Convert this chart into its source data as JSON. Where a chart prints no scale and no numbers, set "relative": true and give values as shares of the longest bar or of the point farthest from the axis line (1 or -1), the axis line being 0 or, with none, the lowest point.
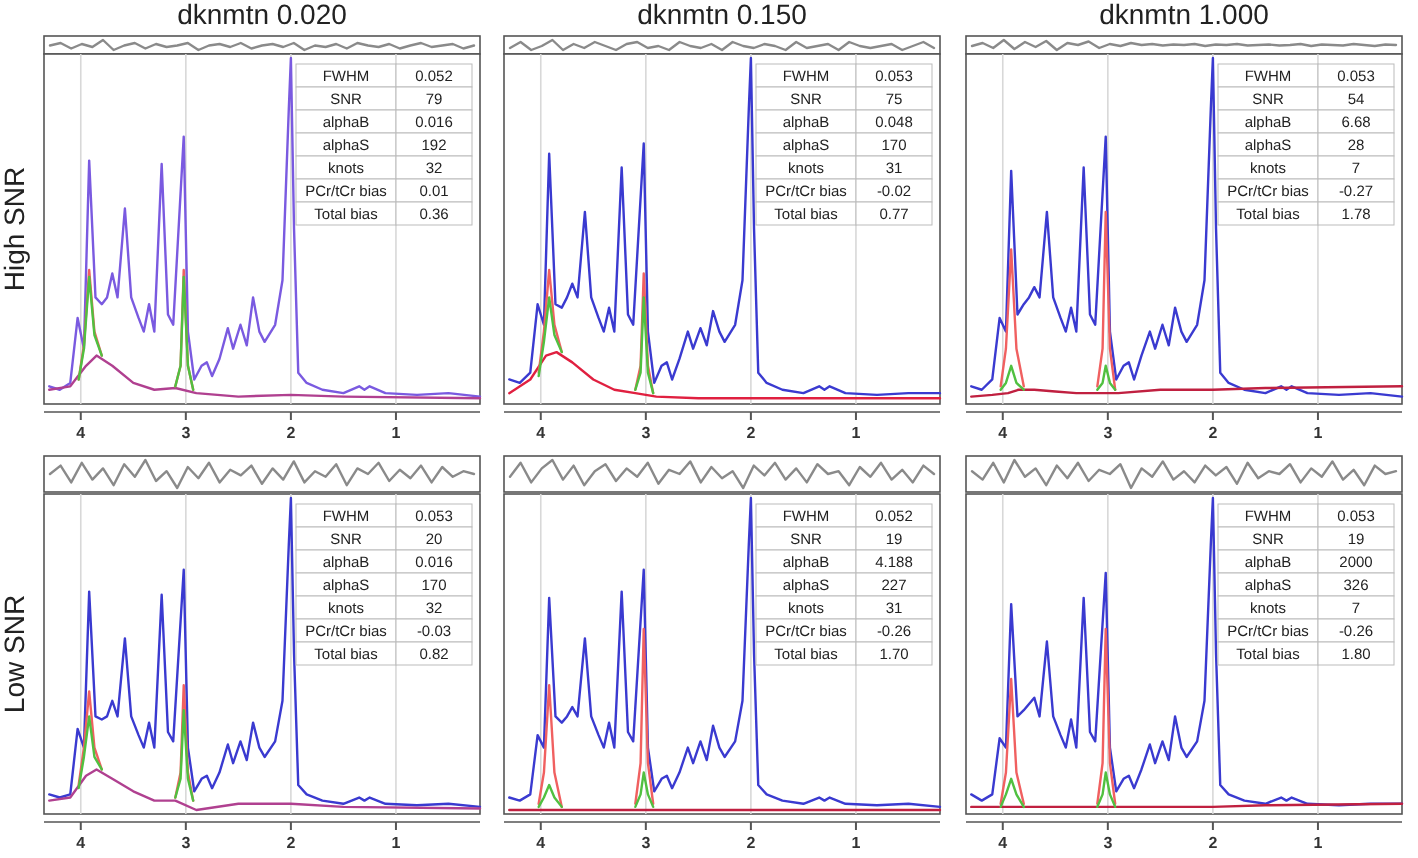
{
  "chart_data": [
    {
      "type": "line",
      "title": "dknmtn 0.020",
      "relative": true,
      "categories": [
        null,
        null,
        null,
        null,
        null,
        null,
        null,
        null,
        null,
        null,
        null,
        null,
        null,
        null,
        null,
        null,
        null,
        null,
        null,
        null,
        null,
        null,
        null,
        null,
        null,
        null,
        null,
        null,
        null,
        null,
        null,
        null,
        null,
        null,
        null,
        null,
        null,
        null,
        null,
        null,
        null
      ],
      "series": [
        {
          "color": "#8a8a8a",
          "values": [
            0.45,
            0.7,
            0.15,
            0.6,
            0.3,
            1.0,
            0.0,
            0.45,
            0.7,
            0.15,
            0.6,
            0.3,
            0.45,
            0.7,
            0.0,
            0.45,
            0.6,
            0.3,
            0.7,
            0.15,
            0.45,
            0.6,
            0.3,
            0.7,
            0.0,
            0.45,
            0.3,
            0.6,
            0.15,
            0.7,
            0.45,
            0.3,
            0.6,
            0.15,
            0.45,
            0.7,
            0.3,
            0.45,
            0.6,
            0.15,
            0.45
          ]
        }
      ]
    },
    {
      "type": "line",
      "title": "dknmtn 0.150",
      "relative": true,
      "categories": [
        null,
        null,
        null,
        null,
        null,
        null,
        null,
        null,
        null,
        null,
        null,
        null,
        null,
        null,
        null,
        null,
        null,
        null,
        null,
        null,
        null,
        null,
        null,
        null,
        null,
        null,
        null,
        null,
        null,
        null,
        null,
        null,
        null,
        null,
        null,
        null,
        null,
        null,
        null,
        null,
        null
      ],
      "series": [
        {
          "color": "#8a8a8a",
          "values": [
            0.2,
            0.8,
            0.0,
            0.4,
            1.0,
            0.0,
            0.6,
            0.2,
            0.8,
            0.4,
            0.0,
            0.6,
            0.8,
            0.2,
            0.4,
            0.0,
            0.8,
            0.4,
            0.2,
            0.6,
            0.0,
            0.8,
            0.4,
            0.2,
            0.6,
            0.4,
            0.0,
            0.8,
            0.2,
            0.4,
            0.6,
            0.0,
            0.8,
            0.4,
            0.2,
            0.4,
            0.6,
            0.0,
            0.4,
            0.8,
            0.2
          ]
        }
      ]
    },
    {
      "type": "line",
      "title": "dknmtn 1.000",
      "relative": true,
      "categories": [
        null,
        null,
        null,
        null,
        null,
        null,
        null,
        null,
        null,
        null,
        null,
        null,
        null,
        null,
        null,
        null,
        null,
        null,
        null,
        null,
        null,
        null,
        null,
        null,
        null,
        null,
        null,
        null,
        null,
        null,
        null,
        null,
        null,
        null,
        null,
        null,
        null,
        null,
        null,
        null,
        null
      ],
      "series": [
        {
          "color": "#8a8a8a",
          "values": [
            0.4,
            0.7,
            0.2,
            1.0,
            0.1,
            0.8,
            0.3,
            0.9,
            0.0,
            0.7,
            0.5,
            0.85,
            0.2,
            0.6,
            0.4,
            0.7,
            0.5,
            0.6,
            0.45,
            0.55,
            0.5,
            0.6,
            0.4,
            0.55,
            0.5,
            0.6,
            0.45,
            0.5,
            0.55,
            0.45,
            0.5,
            0.6,
            0.4,
            0.55,
            0.5,
            0.45,
            0.6,
            0.5,
            0.4,
            0.55,
            0.5
          ]
        }
      ]
    },
    {
      "type": "line",
      "ylabel": "High SNR",
      "relative": true,
      "grid": "x",
      "xlim": [
        4.35,
        0.2
      ],
      "xticks": [
        4,
        3,
        2,
        1
      ],
      "annotations": [
        "FWHM",
        "0.052",
        "SNR",
        "79",
        "alphaB",
        "0.016",
        "alphaS",
        "192",
        "knots",
        "32",
        "PCr/tCr bias",
        "0.01",
        "Total bias",
        "0.36"
      ],
      "x": [
        4.3,
        4.2,
        4.1,
        4.03,
        3.97,
        3.92,
        3.86,
        3.8,
        3.75,
        3.7,
        3.65,
        3.58,
        3.52,
        3.45,
        3.4,
        3.35,
        3.3,
        3.23,
        3.17,
        3.12,
        3.02,
        2.98,
        2.92,
        2.85,
        2.8,
        2.75,
        2.68,
        2.6,
        2.55,
        2.48,
        2.42,
        2.36,
        2.3,
        2.25,
        2.15,
        2.08,
        2.02,
        2.0,
        1.97,
        1.93,
        1.85,
        1.7,
        1.5,
        1.35,
        1.3,
        1.25,
        1.1,
        0.8,
        0.5,
        0.2
      ],
      "series": [
        {
          "color": "#7a5ae0",
          "values": [
            0.04,
            0.03,
            0.05,
            0.24,
            0.15,
            0.7,
            0.3,
            0.28,
            0.3,
            0.37,
            0.3,
            0.56,
            0.3,
            0.24,
            0.2,
            0.28,
            0.2,
            0.69,
            0.25,
            0.22,
            0.77,
            0.2,
            0.06,
            0.1,
            0.11,
            0.07,
            0.12,
            0.21,
            0.15,
            0.22,
            0.16,
            0.3,
            0.2,
            0.17,
            0.22,
            0.35,
            0.85,
            1.0,
            0.5,
            0.08,
            0.05,
            0.03,
            0.02,
            0.04,
            0.03,
            0.04,
            0.02,
            0.015,
            0.02,
            0.01
          ]
        },
        {
          "color": "#b04090",
          "x": [
            4.3,
            4.1,
            3.95,
            3.85,
            3.7,
            3.5,
            3.3,
            3.1,
            2.9,
            2.5,
            2.0,
            1.5,
            0.2
          ],
          "values": [
            0.03,
            0.04,
            0.1,
            0.13,
            0.1,
            0.05,
            0.03,
            0.035,
            0.02,
            0.01,
            0.015,
            0.01,
            0.005
          ]
        },
        {
          "color": "#f06060",
          "x": [
            4.02,
            3.97,
            3.92,
            3.87,
            3.8,
            3.5,
            3.1,
            3.05,
            3.02,
            2.98,
            2.93
          ],
          "values": [
            0.06,
            0.16,
            0.38,
            0.2,
            0.13,
            null,
            0.04,
            0.1,
            0.38,
            0.1,
            0.03
          ]
        },
        {
          "color": "#50c040",
          "x": [
            4.02,
            3.97,
            3.92,
            3.87,
            3.8,
            3.5,
            3.1,
            3.05,
            3.02,
            2.98,
            2.93
          ],
          "values": [
            0.06,
            0.15,
            0.36,
            0.19,
            0.13,
            null,
            0.04,
            0.1,
            0.36,
            0.1,
            0.03
          ]
        }
      ]
    },
    {
      "type": "line",
      "relative": true,
      "grid": "x",
      "xlim": [
        4.35,
        0.2
      ],
      "xticks": [
        4,
        3,
        2,
        1
      ],
      "annotations": [
        "FWHM",
        "0.053",
        "SNR",
        "75",
        "alphaB",
        "0.048",
        "alphaS",
        "170",
        "knots",
        "31",
        "PCr/tCr bias",
        "-0.02",
        "Total bias",
        "0.77"
      ],
      "x": [
        4.3,
        4.2,
        4.1,
        4.03,
        3.97,
        3.92,
        3.86,
        3.8,
        3.75,
        3.7,
        3.65,
        3.58,
        3.52,
        3.45,
        3.4,
        3.35,
        3.3,
        3.23,
        3.17,
        3.12,
        3.02,
        2.98,
        2.92,
        2.85,
        2.8,
        2.75,
        2.68,
        2.6,
        2.55,
        2.48,
        2.42,
        2.36,
        2.3,
        2.25,
        2.15,
        2.08,
        2.02,
        2.0,
        1.97,
        1.93,
        1.85,
        1.7,
        1.5,
        1.35,
        1.3,
        1.25,
        1.1,
        0.8,
        0.5,
        0.2
      ],
      "series": [
        {
          "color": "#3a3ad0",
          "values": [
            0.06,
            0.05,
            0.08,
            0.28,
            0.22,
            0.72,
            0.28,
            0.27,
            0.3,
            0.34,
            0.3,
            0.55,
            0.3,
            0.24,
            0.2,
            0.27,
            0.2,
            0.68,
            0.25,
            0.22,
            0.75,
            0.2,
            0.05,
            0.1,
            0.11,
            0.06,
            0.12,
            0.2,
            0.15,
            0.21,
            0.16,
            0.26,
            0.2,
            0.17,
            0.22,
            0.35,
            0.85,
            1.0,
            0.5,
            0.08,
            0.05,
            0.03,
            0.02,
            0.04,
            0.03,
            0.04,
            0.02,
            0.015,
            0.02,
            0.02
          ]
        },
        {
          "color": "#e02040",
          "x": [
            4.3,
            4.1,
            3.95,
            3.85,
            3.7,
            3.5,
            3.3,
            3.1,
            2.9,
            2.5,
            2.0,
            1.5,
            0.2
          ],
          "values": [
            0.02,
            0.06,
            0.13,
            0.14,
            0.11,
            0.06,
            0.03,
            0.02,
            0.01,
            0.005,
            0.005,
            0.005,
            0.005
          ]
        },
        {
          "color": "#f06060",
          "x": [
            4.02,
            3.97,
            3.92,
            3.87,
            3.8,
            3.5,
            3.1,
            3.05,
            3.02,
            2.98,
            2.93
          ],
          "values": [
            0.08,
            0.2,
            0.38,
            0.22,
            0.14,
            null,
            0.03,
            0.1,
            0.37,
            0.1,
            0.02
          ]
        },
        {
          "color": "#50c040",
          "x": [
            4.02,
            3.97,
            3.92,
            3.87,
            3.8,
            3.5,
            3.1,
            3.05,
            3.02,
            2.98,
            2.93
          ],
          "values": [
            0.07,
            0.17,
            0.3,
            0.19,
            0.14,
            null,
            0.03,
            0.08,
            0.3,
            0.08,
            0.02
          ]
        }
      ]
    },
    {
      "type": "line",
      "relative": true,
      "grid": "x",
      "xlim": [
        4.35,
        0.2
      ],
      "xticks": [
        4,
        3,
        2,
        1
      ],
      "annotations": [
        "FWHM",
        "0.053",
        "SNR",
        "54",
        "alphaB",
        "6.68",
        "alphaS",
        "28",
        "knots",
        "7",
        "PCr/tCr bias",
        "-0.27",
        "Total bias",
        "1.78"
      ],
      "x": [
        4.3,
        4.2,
        4.1,
        4.03,
        3.97,
        3.92,
        3.86,
        3.8,
        3.75,
        3.7,
        3.65,
        3.58,
        3.52,
        3.45,
        3.4,
        3.35,
        3.3,
        3.23,
        3.17,
        3.12,
        3.02,
        2.98,
        2.92,
        2.85,
        2.8,
        2.75,
        2.68,
        2.6,
        2.55,
        2.48,
        2.42,
        2.36,
        2.3,
        2.25,
        2.15,
        2.08,
        2.02,
        2.0,
        1.97,
        1.93,
        1.85,
        1.7,
        1.5,
        1.35,
        1.3,
        1.25,
        1.1,
        0.8,
        0.5,
        0.2
      ],
      "series": [
        {
          "color": "#3a3ad0",
          "values": [
            0.04,
            0.03,
            0.06,
            0.24,
            0.2,
            0.67,
            0.25,
            0.28,
            0.3,
            0.33,
            0.3,
            0.55,
            0.3,
            0.24,
            0.2,
            0.27,
            0.2,
            0.68,
            0.25,
            0.22,
            0.77,
            0.2,
            0.06,
            0.1,
            0.11,
            0.06,
            0.13,
            0.2,
            0.15,
            0.22,
            0.16,
            0.27,
            0.2,
            0.17,
            0.22,
            0.35,
            0.85,
            1.0,
            0.5,
            0.08,
            0.05,
            0.03,
            0.02,
            0.04,
            0.03,
            0.04,
            0.02,
            0.015,
            0.02,
            0.01
          ]
        },
        {
          "color": "#c02040",
          "x": [
            4.3,
            4.1,
            3.95,
            3.85,
            3.7,
            3.5,
            3.3,
            3.1,
            2.9,
            2.5,
            2.0,
            1.5,
            0.2
          ],
          "values": [
            0.01,
            0.015,
            0.02,
            0.03,
            0.03,
            0.025,
            0.02,
            0.02,
            0.02,
            0.03,
            0.03,
            0.035,
            0.04
          ]
        },
        {
          "color": "#f06060",
          "x": [
            4.02,
            3.97,
            3.92,
            3.87,
            3.8,
            3.5,
            3.1,
            3.05,
            3.02,
            2.98,
            2.93
          ],
          "values": [
            0.04,
            0.15,
            0.44,
            0.15,
            0.04,
            null,
            0.04,
            0.15,
            0.55,
            0.15,
            0.03
          ]
        },
        {
          "color": "#50c040",
          "x": [
            4.02,
            3.97,
            3.92,
            3.87,
            3.8,
            3.5,
            3.1,
            3.05,
            3.02,
            2.98,
            2.93
          ],
          "values": [
            0.03,
            0.05,
            0.1,
            0.05,
            0.03,
            null,
            0.03,
            0.05,
            0.1,
            0.05,
            0.03
          ]
        }
      ]
    },
    {
      "type": "line",
      "relative": true,
      "categories": [
        null,
        null,
        null,
        null,
        null,
        null,
        null,
        null,
        null,
        null,
        null,
        null,
        null,
        null,
        null,
        null,
        null,
        null,
        null,
        null,
        null,
        null,
        null,
        null,
        null,
        null,
        null,
        null,
        null,
        null,
        null,
        null,
        null,
        null,
        null,
        null,
        null,
        null,
        null,
        null,
        null
      ],
      "series": [
        {
          "color": "#8a8a8a",
          "values": [
            0.5,
            0.8,
            0.2,
            0.9,
            0.3,
            0.7,
            0.1,
            0.85,
            0.4,
            1.0,
            0.25,
            0.6,
            0.0,
            0.75,
            0.35,
            0.9,
            0.2,
            0.65,
            0.45,
            0.8,
            0.15,
            0.7,
            0.3,
            0.95,
            0.2,
            0.6,
            0.4,
            0.85,
            0.1,
            0.7,
            0.5,
            0.9,
            0.25,
            0.65,
            0.35,
            0.8,
            0.2,
            0.75,
            0.4,
            0.6,
            0.5
          ]
        }
      ]
    },
    {
      "type": "line",
      "relative": true,
      "categories": [
        null,
        null,
        null,
        null,
        null,
        null,
        null,
        null,
        null,
        null,
        null,
        null,
        null,
        null,
        null,
        null,
        null,
        null,
        null,
        null,
        null,
        null,
        null,
        null,
        null,
        null,
        null,
        null,
        null,
        null,
        null,
        null,
        null,
        null,
        null,
        null,
        null,
        null,
        null,
        null,
        null
      ],
      "series": [
        {
          "color": "#8a8a8a",
          "values": [
            0.4,
            0.9,
            0.2,
            0.7,
            1.0,
            0.3,
            0.8,
            0.1,
            0.6,
            0.85,
            0.25,
            0.7,
            0.4,
            0.9,
            0.15,
            0.65,
            0.5,
            0.95,
            0.2,
            0.75,
            0.35,
            0.6,
            0.0,
            0.8,
            0.45,
            0.9,
            0.3,
            0.7,
            0.2,
            0.85,
            0.5,
            0.6,
            0.1,
            0.75,
            0.4,
            0.9,
            0.3,
            0.65,
            0.2,
            0.8,
            0.5
          ]
        }
      ]
    },
    {
      "type": "line",
      "relative": true,
      "categories": [
        null,
        null,
        null,
        null,
        null,
        null,
        null,
        null,
        null,
        null,
        null,
        null,
        null,
        null,
        null,
        null,
        null,
        null,
        null,
        null,
        null,
        null,
        null,
        null,
        null,
        null,
        null,
        null,
        null,
        null,
        null,
        null,
        null,
        null,
        null,
        null,
        null,
        null,
        null,
        null,
        null
      ],
      "series": [
        {
          "color": "#8a8a8a",
          "values": [
            0.6,
            0.3,
            0.9,
            0.2,
            1.0,
            0.4,
            0.7,
            0.1,
            0.8,
            0.35,
            0.9,
            0.25,
            0.65,
            0.5,
            0.85,
            0.0,
            0.7,
            0.4,
            0.95,
            0.3,
            0.6,
            0.2,
            0.8,
            0.45,
            0.75,
            0.15,
            0.9,
            0.35,
            0.6,
            0.5,
            0.85,
            0.2,
            0.7,
            0.4,
            0.95,
            0.3,
            0.65,
            0.1,
            0.8,
            0.5,
            0.6
          ]
        }
      ]
    },
    {
      "type": "line",
      "ylabel": "Low SNR",
      "relative": true,
      "grid": "x",
      "xlim": [
        4.35,
        0.2
      ],
      "xticks": [
        4,
        3,
        2,
        1
      ],
      "annotations": [
        "FWHM",
        "0.053",
        "SNR",
        "20",
        "alphaB",
        "0.016",
        "alphaS",
        "170",
        "knots",
        "32",
        "PCr/tCr bias",
        "-0.03",
        "Total bias",
        "0.82"
      ],
      "x": [
        4.3,
        4.2,
        4.1,
        4.03,
        3.97,
        3.92,
        3.86,
        3.8,
        3.75,
        3.7,
        3.65,
        3.58,
        3.52,
        3.45,
        3.4,
        3.35,
        3.3,
        3.23,
        3.17,
        3.12,
        3.02,
        2.98,
        2.92,
        2.85,
        2.8,
        2.75,
        2.68,
        2.6,
        2.55,
        2.48,
        2.42,
        2.36,
        2.3,
        2.25,
        2.15,
        2.08,
        2.02,
        2.0,
        1.97,
        1.93,
        1.85,
        1.7,
        1.5,
        1.35,
        1.3,
        1.25,
        1.1,
        0.8,
        0.5,
        0.2
      ],
      "series": [
        {
          "color": "#3a3ad0",
          "values": [
            0.05,
            0.04,
            0.05,
            0.26,
            0.2,
            0.7,
            0.3,
            0.29,
            0.3,
            0.35,
            0.3,
            0.55,
            0.3,
            0.24,
            0.2,
            0.28,
            0.2,
            0.69,
            0.25,
            0.22,
            0.77,
            0.2,
            0.06,
            0.1,
            0.11,
            0.07,
            0.12,
            0.21,
            0.15,
            0.22,
            0.16,
            0.28,
            0.2,
            0.17,
            0.22,
            0.35,
            0.85,
            1.0,
            0.5,
            0.08,
            0.05,
            0.03,
            0.02,
            0.04,
            0.03,
            0.04,
            0.02,
            0.015,
            0.02,
            0.01
          ]
        },
        {
          "color": "#b04090",
          "x": [
            4.3,
            4.1,
            3.95,
            3.85,
            3.7,
            3.5,
            3.3,
            3.1,
            2.9,
            2.5,
            2.0,
            1.5,
            0.2
          ],
          "values": [
            0.03,
            0.04,
            0.11,
            0.13,
            0.1,
            0.06,
            0.03,
            0.03,
            0.0,
            0.02,
            0.02,
            0.01,
            0.005
          ]
        },
        {
          "color": "#f06060",
          "x": [
            4.02,
            3.97,
            3.92,
            3.87,
            3.8,
            3.5,
            3.1,
            3.05,
            3.02,
            2.98,
            2.93
          ],
          "values": [
            0.08,
            0.2,
            0.38,
            0.2,
            0.13,
            null,
            0.04,
            0.12,
            0.4,
            0.12,
            0.03
          ]
        },
        {
          "color": "#50c040",
          "x": [
            4.02,
            3.97,
            3.92,
            3.87,
            3.8,
            3.5,
            3.1,
            3.05,
            3.02,
            2.98,
            2.93
          ],
          "values": [
            0.07,
            0.17,
            0.3,
            0.17,
            0.13,
            null,
            0.04,
            0.1,
            0.32,
            0.1,
            0.03
          ]
        }
      ]
    },
    {
      "type": "line",
      "relative": true,
      "grid": "x",
      "xlim": [
        4.35,
        0.2
      ],
      "xticks": [
        4,
        3,
        2,
        1
      ],
      "annotations": [
        "FWHM",
        "0.052",
        "SNR",
        "19",
        "alphaB",
        "4.188",
        "alphaS",
        "227",
        "knots",
        "31",
        "PCr/tCr bias",
        "-0.26",
        "Total bias",
        "1.70"
      ],
      "x": [
        4.3,
        4.2,
        4.1,
        4.03,
        3.97,
        3.92,
        3.86,
        3.8,
        3.75,
        3.7,
        3.65,
        3.58,
        3.52,
        3.45,
        3.4,
        3.35,
        3.3,
        3.23,
        3.17,
        3.12,
        3.02,
        2.98,
        2.92,
        2.85,
        2.8,
        2.75,
        2.68,
        2.6,
        2.55,
        2.48,
        2.42,
        2.36,
        2.3,
        2.25,
        2.15,
        2.08,
        2.02,
        2.0,
        1.97,
        1.93,
        1.85,
        1.7,
        1.5,
        1.35,
        1.3,
        1.25,
        1.1,
        0.8,
        0.5,
        0.2
      ],
      "series": [
        {
          "color": "#3a3ad0",
          "values": [
            0.04,
            0.03,
            0.05,
            0.24,
            0.2,
            0.68,
            0.3,
            0.28,
            0.3,
            0.33,
            0.3,
            0.55,
            0.3,
            0.24,
            0.2,
            0.28,
            0.2,
            0.7,
            0.25,
            0.22,
            0.77,
            0.2,
            0.06,
            0.1,
            0.11,
            0.07,
            0.12,
            0.2,
            0.15,
            0.22,
            0.16,
            0.27,
            0.2,
            0.17,
            0.22,
            0.35,
            0.85,
            1.0,
            0.5,
            0.08,
            0.05,
            0.03,
            0.02,
            0.04,
            0.03,
            0.04,
            0.02,
            0.015,
            0.02,
            0.01
          ]
        },
        {
          "color": "#c02040",
          "x": [
            4.3,
            4.1,
            3.95,
            3.85,
            3.7,
            3.5,
            3.3,
            3.1,
            2.9,
            2.5,
            2.0,
            1.5,
            0.2
          ],
          "values": [
            0.0,
            0.0,
            0.0,
            0.0,
            0.0,
            0.0,
            0.0,
            0.0,
            0.0,
            0.0,
            0.0,
            0.0,
            0.0
          ]
        },
        {
          "color": "#f06060",
          "x": [
            4.02,
            3.97,
            3.92,
            3.87,
            3.8,
            3.5,
            3.1,
            3.05,
            3.02,
            2.98,
            2.93
          ],
          "values": [
            0.02,
            0.12,
            0.4,
            0.12,
            0.01,
            null,
            0.02,
            0.15,
            0.58,
            0.15,
            0.02
          ]
        },
        {
          "color": "#50c040",
          "x": [
            4.02,
            3.97,
            3.92,
            3.87,
            3.8,
            3.5,
            3.1,
            3.05,
            3.02,
            2.98,
            2.93
          ],
          "values": [
            0.01,
            0.04,
            0.08,
            0.04,
            0.01,
            null,
            0.01,
            0.05,
            0.12,
            0.05,
            0.01
          ]
        }
      ]
    },
    {
      "type": "line",
      "relative": true,
      "grid": "x",
      "xlim": [
        4.35,
        0.2
      ],
      "xticks": [
        4,
        3,
        2,
        1
      ],
      "annotations": [
        "FWHM",
        "0.053",
        "SNR",
        "19",
        "alphaB",
        "2000",
        "alphaS",
        "326",
        "knots",
        "7",
        "PCr/tCr bias",
        "-0.26",
        "Total bias",
        "1.80"
      ],
      "x": [
        4.3,
        4.2,
        4.1,
        4.03,
        3.97,
        3.92,
        3.86,
        3.8,
        3.75,
        3.7,
        3.65,
        3.58,
        3.52,
        3.45,
        3.4,
        3.35,
        3.3,
        3.23,
        3.17,
        3.12,
        3.02,
        2.98,
        2.92,
        2.85,
        2.8,
        2.75,
        2.68,
        2.6,
        2.55,
        2.48,
        2.42,
        2.36,
        2.3,
        2.25,
        2.15,
        2.08,
        2.02,
        2.0,
        1.97,
        1.93,
        1.85,
        1.7,
        1.5,
        1.35,
        1.3,
        1.25,
        1.1,
        0.8,
        0.5,
        0.2
      ],
      "series": [
        {
          "color": "#3a3ad0",
          "values": [
            0.05,
            0.03,
            0.05,
            0.23,
            0.2,
            0.66,
            0.3,
            0.32,
            0.34,
            0.36,
            0.3,
            0.54,
            0.3,
            0.24,
            0.2,
            0.29,
            0.2,
            0.68,
            0.25,
            0.22,
            0.76,
            0.2,
            0.06,
            0.1,
            0.11,
            0.07,
            0.13,
            0.21,
            0.15,
            0.22,
            0.16,
            0.3,
            0.2,
            0.17,
            0.22,
            0.35,
            0.85,
            1.0,
            0.5,
            0.08,
            0.05,
            0.03,
            0.02,
            0.04,
            0.03,
            0.04,
            0.02,
            0.015,
            0.02,
            0.02
          ]
        },
        {
          "color": "#c02040",
          "x": [
            4.3,
            4.1,
            3.95,
            3.85,
            3.7,
            3.5,
            3.3,
            3.1,
            2.9,
            2.5,
            2.0,
            1.5,
            0.2
          ],
          "values": [
            0.01,
            0.01,
            0.01,
            0.01,
            0.01,
            0.01,
            0.01,
            0.01,
            0.01,
            0.01,
            0.01,
            0.015,
            0.02
          ]
        },
        {
          "color": "#f06060",
          "x": [
            4.02,
            3.97,
            3.92,
            3.87,
            3.8,
            3.5,
            3.1,
            3.05,
            3.02,
            2.98,
            2.93
          ],
          "values": [
            0.02,
            0.12,
            0.42,
            0.12,
            0.02,
            null,
            0.02,
            0.15,
            0.58,
            0.15,
            0.02
          ]
        },
        {
          "color": "#50c040",
          "x": [
            4.02,
            3.97,
            3.92,
            3.87,
            3.8,
            3.5,
            3.1,
            3.05,
            3.02,
            2.98,
            2.93
          ],
          "values": [
            0.01,
            0.05,
            0.1,
            0.05,
            0.01,
            null,
            0.01,
            0.05,
            0.12,
            0.05,
            0.01
          ]
        }
      ]
    }
  ]
}
